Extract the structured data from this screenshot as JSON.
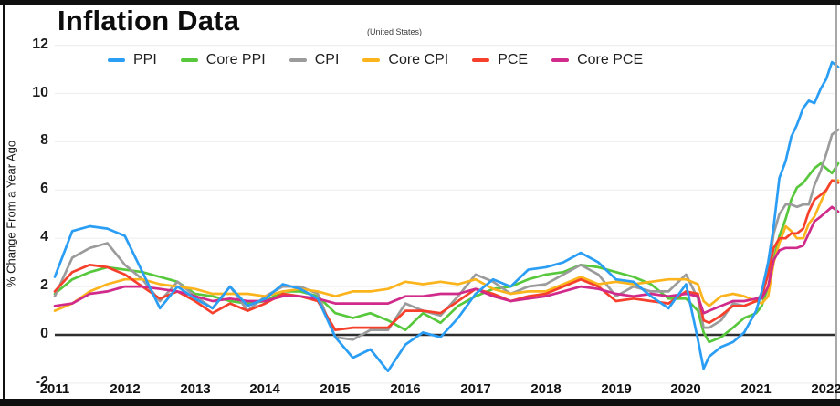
{
  "chart_data": {
    "type": "line",
    "title": "Inflation Data",
    "subtitle": "(United States)",
    "xlabel": "",
    "ylabel": "% Change From a Year Ago",
    "grid": true,
    "legend_position": "top",
    "x_range": [
      2011,
      2022.17
    ],
    "ylim": [
      -2.3,
      12.6
    ],
    "yticks": [
      12,
      10,
      8,
      6,
      4,
      2,
      0,
      -2
    ],
    "xticks": [
      "2011",
      "2012",
      "2013",
      "2014",
      "2015",
      "2016",
      "2017",
      "2018",
      "2019",
      "2020",
      "2021",
      "2022"
    ],
    "zero_line_color": "#2e2e2e",
    "grid_color": "#efefef",
    "x": [
      2011.0,
      2011.25,
      2011.5,
      2011.75,
      2012.0,
      2012.25,
      2012.5,
      2012.75,
      2013.0,
      2013.25,
      2013.5,
      2013.75,
      2014.0,
      2014.25,
      2014.5,
      2014.75,
      2015.0,
      2015.25,
      2015.5,
      2015.75,
      2016.0,
      2016.25,
      2016.5,
      2016.75,
      2017.0,
      2017.25,
      2017.5,
      2017.75,
      2018.0,
      2018.25,
      2018.5,
      2018.75,
      2019.0,
      2019.25,
      2019.5,
      2019.75,
      2020.0,
      2020.17,
      2020.25,
      2020.33,
      2020.5,
      2020.67,
      2020.83,
      2021.0,
      2021.08,
      2021.17,
      2021.25,
      2021.33,
      2021.42,
      2021.5,
      2021.58,
      2021.67,
      2021.75,
      2021.83,
      2021.92,
      2022.0,
      2022.08,
      2022.17
    ],
    "draw_order": [
      1,
      2,
      3,
      4,
      5,
      0
    ],
    "series": [
      {
        "name": "PPI",
        "color": "#2a9df4",
        "values": [
          2.4,
          4.3,
          4.5,
          4.4,
          4.1,
          2.6,
          1.1,
          2.0,
          1.5,
          1.1,
          2.0,
          1.2,
          1.5,
          2.1,
          1.9,
          1.5,
          -0.1,
          -0.95,
          -0.6,
          -1.5,
          -0.4,
          0.1,
          -0.1,
          0.7,
          1.7,
          2.3,
          2.0,
          2.7,
          2.8,
          3.0,
          3.4,
          3.0,
          2.3,
          2.2,
          1.6,
          1.1,
          2.1,
          -0.2,
          -1.4,
          -0.9,
          -0.5,
          -0.3,
          0.1,
          1.0,
          1.8,
          3.0,
          4.5,
          6.5,
          7.2,
          8.2,
          8.7,
          9.4,
          9.7,
          9.6,
          10.2,
          10.6,
          11.3,
          11.1
        ]
      },
      {
        "name": "Core PPI",
        "color": "#57c83c",
        "values": [
          1.7,
          2.3,
          2.6,
          2.8,
          2.7,
          2.6,
          2.4,
          2.2,
          1.7,
          1.6,
          1.4,
          1.3,
          1.4,
          1.8,
          1.8,
          1.6,
          0.9,
          0.7,
          0.9,
          0.6,
          0.2,
          0.9,
          0.5,
          1.2,
          1.6,
          1.9,
          2.0,
          2.3,
          2.5,
          2.6,
          2.9,
          2.8,
          2.6,
          2.4,
          2.1,
          1.5,
          1.5,
          1.0,
          0.1,
          -0.3,
          -0.1,
          0.3,
          0.7,
          0.9,
          1.2,
          2.0,
          3.1,
          4.1,
          4.8,
          5.6,
          6.1,
          6.3,
          6.6,
          6.9,
          7.1,
          6.9,
          6.7,
          7.1
        ]
      },
      {
        "name": "CPI",
        "color": "#9b9b9b",
        "values": [
          1.6,
          3.2,
          3.6,
          3.8,
          2.9,
          2.3,
          1.4,
          2.2,
          1.6,
          1.1,
          2.0,
          1.0,
          1.6,
          2.0,
          2.0,
          1.7,
          -0.1,
          -0.2,
          0.2,
          0.2,
          1.3,
          1.0,
          0.8,
          1.6,
          2.5,
          2.2,
          1.7,
          2.0,
          2.1,
          2.5,
          2.9,
          2.5,
          1.6,
          2.0,
          1.8,
          1.8,
          2.5,
          1.5,
          0.3,
          0.3,
          0.6,
          1.3,
          1.2,
          1.4,
          1.7,
          2.6,
          4.2,
          5.0,
          5.4,
          5.4,
          5.3,
          5.4,
          5.4,
          6.2,
          6.8,
          7.5,
          8.3,
          8.5
        ]
      },
      {
        "name": "Core CPI",
        "color": "#fbb41c",
        "values": [
          1.0,
          1.3,
          1.8,
          2.1,
          2.3,
          2.3,
          2.1,
          2.0,
          1.9,
          1.7,
          1.7,
          1.7,
          1.6,
          1.8,
          1.9,
          1.8,
          1.6,
          1.8,
          1.8,
          1.9,
          2.2,
          2.1,
          2.2,
          2.1,
          2.3,
          1.9,
          1.7,
          1.8,
          1.8,
          2.1,
          2.4,
          2.1,
          2.2,
          2.1,
          2.2,
          2.3,
          2.3,
          2.1,
          1.4,
          1.2,
          1.6,
          1.7,
          1.6,
          1.4,
          1.3,
          1.6,
          3.0,
          3.8,
          4.5,
          4.3,
          4.0,
          4.0,
          4.6,
          4.9,
          5.5,
          6.0,
          6.4,
          6.4
        ]
      },
      {
        "name": "PCE",
        "color": "#f6402c",
        "values": [
          1.8,
          2.6,
          2.9,
          2.8,
          2.5,
          2.0,
          1.5,
          1.8,
          1.4,
          0.9,
          1.3,
          1.0,
          1.3,
          1.7,
          1.6,
          1.4,
          0.2,
          0.3,
          0.3,
          0.3,
          1.0,
          1.0,
          0.9,
          1.4,
          1.9,
          1.7,
          1.4,
          1.6,
          1.7,
          2.0,
          2.3,
          2.0,
          1.4,
          1.5,
          1.4,
          1.3,
          1.8,
          1.7,
          0.6,
          0.5,
          0.8,
          1.2,
          1.2,
          1.4,
          1.6,
          2.5,
          3.6,
          4.0,
          4.0,
          4.2,
          4.2,
          4.4,
          5.1,
          5.6,
          5.8,
          6.0,
          6.4,
          6.3
        ]
      },
      {
        "name": "Core PCE",
        "color": "#d02a8a",
        "values": [
          1.2,
          1.3,
          1.7,
          1.8,
          2.0,
          2.0,
          1.9,
          1.8,
          1.6,
          1.4,
          1.5,
          1.4,
          1.4,
          1.6,
          1.6,
          1.5,
          1.3,
          1.3,
          1.3,
          1.3,
          1.6,
          1.6,
          1.7,
          1.7,
          1.9,
          1.6,
          1.4,
          1.5,
          1.6,
          1.8,
          2.0,
          1.9,
          1.7,
          1.6,
          1.7,
          1.6,
          1.7,
          1.6,
          0.9,
          1.0,
          1.2,
          1.4,
          1.4,
          1.5,
          1.5,
          2.0,
          3.1,
          3.5,
          3.6,
          3.6,
          3.6,
          3.7,
          4.2,
          4.7,
          4.9,
          5.1,
          5.3,
          5.1
        ]
      }
    ]
  }
}
